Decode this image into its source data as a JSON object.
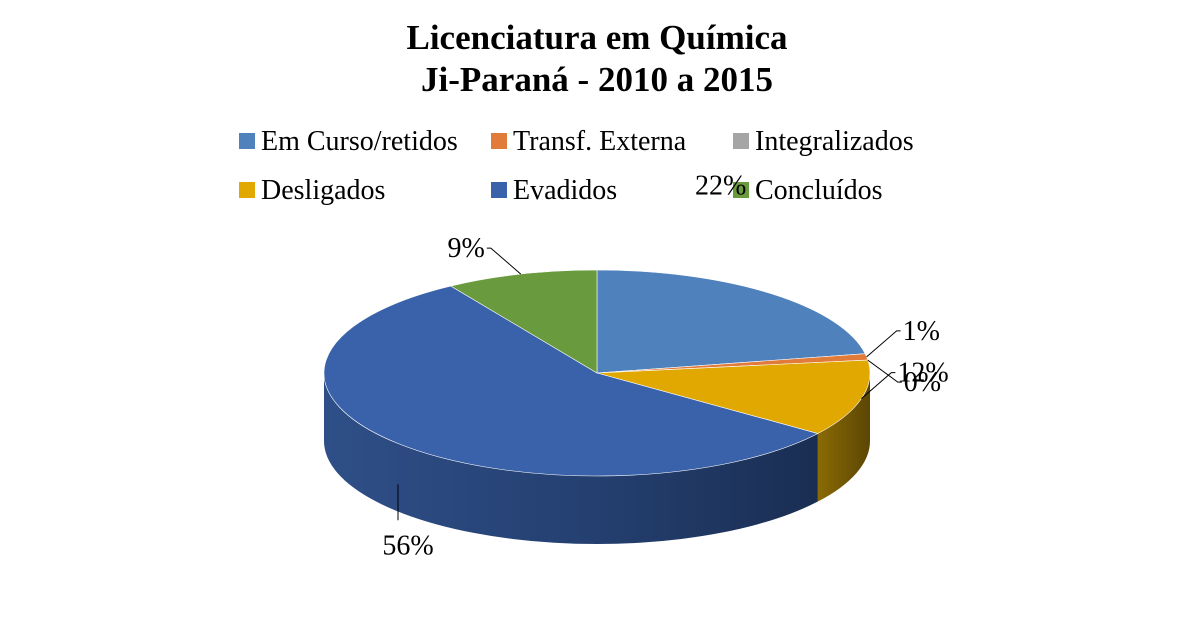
{
  "chart_data": {
    "type": "pie",
    "title": [
      "Licenciatura em Química",
      "Ji-Paraná - 2010 a 2015"
    ],
    "slices": [
      {
        "label": "Em Curso/retidos",
        "value": 22,
        "value_label": "22%",
        "color": "#4f81bd"
      },
      {
        "label": "Transf. Externa",
        "value": 1,
        "value_label": "1%",
        "color": "#e07b39"
      },
      {
        "label": "Integralizados",
        "value": 0,
        "value_label": "0%",
        "color": "#a5a5a5"
      },
      {
        "label": "Desligados",
        "value": 12,
        "value_label": "12%",
        "color": "#e0a800"
      },
      {
        "label": "Evadidos",
        "value": 56,
        "value_label": "56%",
        "color": "#3a62aa"
      },
      {
        "label": "Concluídos",
        "value": 9,
        "value_label": "9%",
        "color": "#6a9a3e"
      }
    ],
    "legend_position": "top",
    "style": "3d-pie"
  }
}
